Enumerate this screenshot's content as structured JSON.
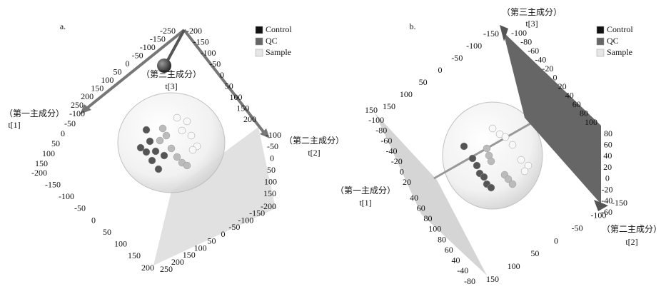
{
  "panels": [
    {
      "label": "a.",
      "legend": [
        "Control",
        "QC",
        "Sample"
      ],
      "axis_titles": [
        {
          "name": "（第三主成分）",
          "var": "t[3]"
        },
        {
          "name": "（第一主成分）",
          "var": "t[1]"
        },
        {
          "name": "（第二主成分）",
          "var": "t[2]"
        }
      ],
      "tick_groups": [
        [
          "-250",
          "-150",
          "-100",
          "-50",
          "0",
          "50",
          "100",
          "150",
          "200",
          "250"
        ],
        [
          "-200",
          "-150",
          "-100",
          "-50",
          "0",
          "50",
          "100",
          "150",
          "200"
        ],
        [
          "-100",
          "-50",
          "0",
          "50",
          "100",
          "150"
        ],
        [
          "-200",
          "-150",
          "-100",
          "-50",
          "0",
          "50",
          "100",
          "150",
          "200"
        ],
        [
          "250",
          "200",
          "150",
          "100",
          "50",
          "0",
          "-50",
          "-100",
          "-150",
          "-200"
        ],
        [
          "-100",
          "-50",
          "0",
          "50",
          "100",
          "150"
        ]
      ]
    },
    {
      "label": "b.",
      "legend": [
        "Control",
        "QC",
        "Sample"
      ],
      "axis_titles": [
        {
          "name": "（第三主成分）",
          "var": "t[3]"
        },
        {
          "name": "（第一主成分）",
          "var": "t[1]"
        },
        {
          "name": "（第二主成分）",
          "var": "t[2]"
        }
      ],
      "tick_groups": [
        [
          "-150",
          "-100",
          "-50",
          "0",
          "50",
          "100",
          "150"
        ],
        [
          "-100",
          "-80",
          "-60",
          "-40",
          "-20",
          "0",
          "20",
          "40",
          "60",
          "80",
          "100"
        ],
        [
          "80",
          "60",
          "40",
          "20",
          "0",
          "-20",
          "-40",
          "-60"
        ],
        [
          "-150",
          "-100",
          "-50",
          "0",
          "50",
          "100",
          "150"
        ],
        [
          "150",
          "-100",
          "-80",
          "-60",
          "-40",
          "-20",
          "0",
          "20"
        ],
        [
          "40",
          "60",
          "80",
          "100",
          "80",
          "60",
          "40",
          "-40",
          "-80"
        ]
      ]
    }
  ]
}
